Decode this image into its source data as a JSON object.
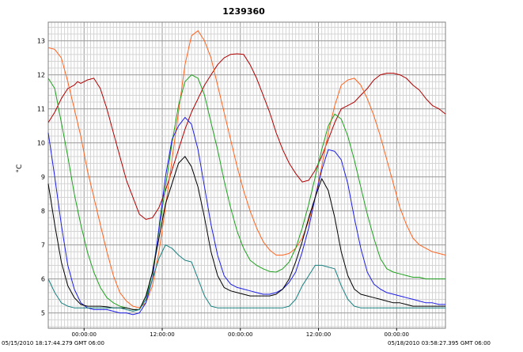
{
  "chart_data": {
    "type": "line",
    "title": "1239360",
    "xlabel": "",
    "ylabel": "°C",
    "xlim": [
      0,
      122
    ],
    "ylim": [
      4.55,
      13.55
    ],
    "grid": true,
    "yticks": [
      5,
      6,
      7,
      8,
      9,
      10,
      11,
      12,
      13
    ],
    "xticks": [
      {
        "x": 11,
        "label": "00:00:00"
      },
      {
        "x": 35,
        "label": "12:00:00"
      },
      {
        "x": 59,
        "label": "00:00:00"
      },
      {
        "x": 83,
        "label": "12:00:00"
      },
      {
        "x": 107,
        "label": "00:00:00"
      }
    ],
    "start_label": "05/15/2010 18:17:44.279 GMT 06:00",
    "end_label": "05/18/2010 03:58:27.395 GMT 06:00",
    "series": [
      {
        "color": "#b00000",
        "x": [
          0,
          2,
          4,
          6,
          8,
          9,
          10,
          12,
          14,
          16,
          18,
          20,
          22,
          24,
          26,
          28,
          30,
          32,
          34,
          36,
          38,
          40,
          42,
          44,
          46,
          48,
          50,
          52,
          54,
          56,
          58,
          60,
          62,
          64,
          66,
          68,
          70,
          72,
          74,
          76,
          78,
          80,
          82,
          84,
          86,
          88,
          90,
          92,
          94,
          96,
          98,
          100,
          102,
          104,
          106,
          108,
          110,
          112,
          114,
          116,
          118,
          120,
          122
        ],
        "y": [
          10.6,
          10.9,
          11.3,
          11.6,
          11.7,
          11.8,
          11.75,
          11.85,
          11.9,
          11.6,
          11.0,
          10.3,
          9.6,
          8.9,
          8.4,
          7.9,
          7.75,
          7.8,
          8.1,
          8.6,
          9.2,
          9.8,
          10.4,
          10.9,
          11.3,
          11.7,
          12.0,
          12.3,
          12.5,
          12.6,
          12.62,
          12.6,
          12.3,
          11.9,
          11.4,
          10.9,
          10.3,
          9.8,
          9.4,
          9.1,
          8.85,
          8.9,
          9.2,
          9.6,
          10.1,
          10.6,
          11.0,
          11.1,
          11.2,
          11.4,
          11.6,
          11.85,
          12.0,
          12.05,
          12.05,
          12.0,
          11.9,
          11.7,
          11.55,
          11.3,
          11.1,
          11.0,
          10.85
        ]
      },
      {
        "color": "#ff6420",
        "x": [
          0,
          2,
          4,
          6,
          8,
          10,
          12,
          14,
          16,
          18,
          20,
          22,
          24,
          26,
          28,
          30,
          32,
          34,
          36,
          38,
          40,
          42,
          44,
          46,
          48,
          50,
          52,
          54,
          56,
          58,
          60,
          62,
          64,
          66,
          68,
          70,
          72,
          74,
          76,
          78,
          80,
          82,
          84,
          86,
          88,
          90,
          92,
          94,
          96,
          98,
          100,
          102,
          104,
          106,
          108,
          110,
          112,
          114,
          116,
          118,
          120,
          122
        ],
        "y": [
          12.8,
          12.75,
          12.5,
          11.8,
          11.0,
          10.2,
          9.2,
          8.4,
          7.6,
          6.8,
          6.1,
          5.6,
          5.35,
          5.2,
          5.15,
          5.3,
          5.8,
          6.8,
          8.1,
          9.5,
          10.9,
          12.3,
          13.15,
          13.3,
          13.0,
          12.5,
          11.7,
          10.9,
          10.1,
          9.3,
          8.6,
          8.0,
          7.5,
          7.1,
          6.85,
          6.7,
          6.7,
          6.75,
          6.9,
          7.2,
          7.7,
          8.4,
          9.3,
          10.3,
          11.1,
          11.7,
          11.85,
          11.9,
          11.7,
          11.3,
          10.8,
          10.2,
          9.5,
          8.8,
          8.1,
          7.6,
          7.2,
          7.0,
          6.9,
          6.8,
          6.75,
          6.7
        ]
      },
      {
        "color": "#20a020",
        "x": [
          0,
          2,
          4,
          6,
          8,
          10,
          12,
          14,
          16,
          18,
          20,
          22,
          24,
          26,
          28,
          30,
          32,
          34,
          36,
          38,
          40,
          42,
          44,
          46,
          48,
          50,
          52,
          54,
          56,
          58,
          60,
          62,
          64,
          66,
          68,
          70,
          72,
          74,
          76,
          78,
          80,
          82,
          84,
          86,
          88,
          90,
          92,
          94,
          96,
          98,
          100,
          102,
          104,
          106,
          108,
          110,
          112,
          114,
          116,
          118,
          120,
          122
        ],
        "y": [
          11.9,
          11.6,
          10.6,
          9.6,
          8.5,
          7.6,
          6.8,
          6.2,
          5.75,
          5.45,
          5.3,
          5.2,
          5.15,
          5.1,
          5.1,
          5.4,
          6.2,
          7.4,
          8.7,
          10.0,
          11.1,
          11.8,
          12.0,
          11.9,
          11.4,
          10.6,
          9.8,
          8.9,
          8.1,
          7.4,
          6.9,
          6.55,
          6.4,
          6.3,
          6.22,
          6.2,
          6.3,
          6.5,
          6.9,
          7.5,
          8.2,
          9.0,
          9.8,
          10.5,
          10.85,
          10.7,
          10.2,
          9.5,
          8.7,
          7.9,
          7.2,
          6.6,
          6.3,
          6.2,
          6.15,
          6.1,
          6.05,
          6.05,
          6.0,
          6.0,
          6.0,
          6.0
        ]
      },
      {
        "color": "#1e1ee6",
        "x": [
          0,
          2,
          4,
          6,
          8,
          10,
          12,
          14,
          16,
          18,
          20,
          22,
          24,
          26,
          28,
          30,
          32,
          34,
          36,
          38,
          40,
          42,
          44,
          46,
          48,
          50,
          52,
          54,
          56,
          58,
          60,
          62,
          64,
          66,
          68,
          70,
          72,
          74,
          76,
          78,
          80,
          82,
          84,
          86,
          88,
          90,
          92,
          94,
          96,
          98,
          100,
          102,
          104,
          106,
          108,
          110,
          112,
          114,
          116,
          118,
          120,
          122
        ],
        "y": [
          10.3,
          9.0,
          7.6,
          6.4,
          5.7,
          5.3,
          5.15,
          5.1,
          5.1,
          5.1,
          5.05,
          5.0,
          5.0,
          4.95,
          5.0,
          5.3,
          6.0,
          7.5,
          9.0,
          10.1,
          10.5,
          10.75,
          10.55,
          9.8,
          8.7,
          7.6,
          6.7,
          6.1,
          5.85,
          5.75,
          5.7,
          5.65,
          5.6,
          5.55,
          5.55,
          5.6,
          5.7,
          5.9,
          6.2,
          6.8,
          7.5,
          8.4,
          9.2,
          9.8,
          9.75,
          9.5,
          8.8,
          7.8,
          6.9,
          6.2,
          5.85,
          5.7,
          5.6,
          5.55,
          5.5,
          5.45,
          5.4,
          5.35,
          5.3,
          5.3,
          5.25,
          5.25
        ]
      },
      {
        "color": "#000000",
        "x": [
          0,
          2,
          4,
          6,
          8,
          10,
          12,
          14,
          16,
          18,
          20,
          22,
          24,
          26,
          28,
          30,
          32,
          34,
          36,
          38,
          40,
          42,
          44,
          46,
          48,
          50,
          52,
          54,
          56,
          58,
          60,
          62,
          64,
          66,
          68,
          70,
          72,
          74,
          76,
          78,
          80,
          82,
          84,
          86,
          88,
          90,
          92,
          94,
          96,
          98,
          100,
          102,
          104,
          106,
          108,
          110,
          112,
          114,
          116,
          118,
          120,
          122
        ],
        "y": [
          8.8,
          7.6,
          6.5,
          5.8,
          5.45,
          5.25,
          5.2,
          5.2,
          5.2,
          5.18,
          5.15,
          5.15,
          5.15,
          5.1,
          5.1,
          5.5,
          6.2,
          7.2,
          8.2,
          8.8,
          9.4,
          9.6,
          9.3,
          8.7,
          7.8,
          6.8,
          6.1,
          5.75,
          5.65,
          5.6,
          5.55,
          5.5,
          5.5,
          5.5,
          5.5,
          5.55,
          5.7,
          6.0,
          6.5,
          7.1,
          7.8,
          8.4,
          8.95,
          8.6,
          7.8,
          6.8,
          6.1,
          5.7,
          5.55,
          5.5,
          5.45,
          5.4,
          5.35,
          5.3,
          5.3,
          5.25,
          5.2,
          5.2,
          5.2,
          5.2,
          5.2,
          5.2
        ]
      },
      {
        "color": "#1a8080",
        "x": [
          0,
          2,
          4,
          6,
          8,
          10,
          12,
          14,
          16,
          18,
          20,
          22,
          24,
          26,
          28,
          30,
          32,
          34,
          36,
          38,
          40,
          42,
          44,
          46,
          48,
          50,
          52,
          54,
          56,
          58,
          60,
          62,
          64,
          66,
          68,
          70,
          72,
          74,
          76,
          78,
          80,
          82,
          84,
          86,
          88,
          90,
          92,
          94,
          96,
          98,
          100,
          102,
          104,
          106,
          108,
          110,
          112,
          114,
          116,
          118,
          120,
          122
        ],
        "y": [
          6.0,
          5.6,
          5.3,
          5.2,
          5.15,
          5.15,
          5.15,
          5.15,
          5.15,
          5.15,
          5.15,
          5.15,
          5.1,
          5.05,
          5.1,
          5.4,
          6.0,
          6.6,
          7.0,
          6.9,
          6.7,
          6.55,
          6.5,
          6.0,
          5.5,
          5.2,
          5.15,
          5.15,
          5.15,
          5.15,
          5.15,
          5.15,
          5.15,
          5.15,
          5.15,
          5.15,
          5.15,
          5.2,
          5.4,
          5.8,
          6.1,
          6.4,
          6.4,
          6.35,
          6.3,
          5.8,
          5.4,
          5.2,
          5.15,
          5.15,
          5.15,
          5.15,
          5.15,
          5.15,
          5.15,
          5.15,
          5.15,
          5.15,
          5.15,
          5.15,
          5.15,
          5.15
        ]
      }
    ]
  }
}
